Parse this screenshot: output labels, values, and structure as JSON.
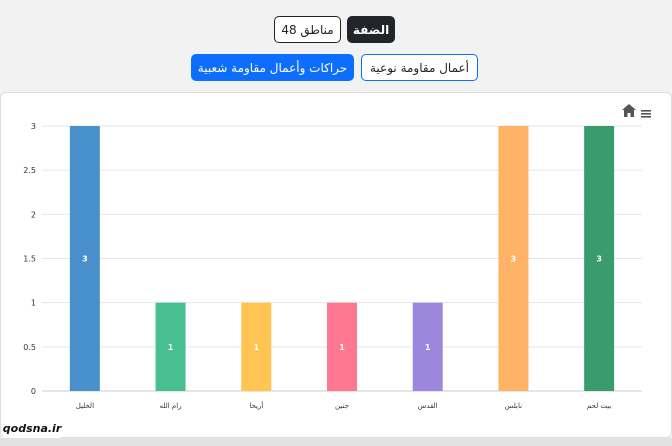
{
  "buttons": {
    "west_bank": "الضفة",
    "areas_48": "مناطق 48",
    "qualitative_actions": "أعمال مقاومة نوعية",
    "popular_resistance": "حراكات وأعمال مقاومة شعبية"
  },
  "watermark": "qodsna.ir",
  "chart_data": {
    "type": "bar",
    "categories": [
      "الخليل",
      "رام الله",
      "أريحا",
      "جنين",
      "القدس",
      "نابلس",
      "بيت لحم"
    ],
    "values": [
      3,
      1,
      1,
      1,
      1,
      3,
      3
    ],
    "colors": [
      "#4a90cc",
      "#47bf8f",
      "#ffc451",
      "#ff7891",
      "#9c87dc",
      "#ffb366",
      "#3a9c6c"
    ],
    "ylim": [
      0,
      3
    ],
    "yticks": [
      "0",
      "0.5",
      "1",
      "1.5",
      "2",
      "2.5",
      "3"
    ],
    "data_labels": true,
    "grid": true,
    "legend": "none"
  },
  "icons": {
    "home": "home-icon",
    "menu": "menu-icon"
  }
}
